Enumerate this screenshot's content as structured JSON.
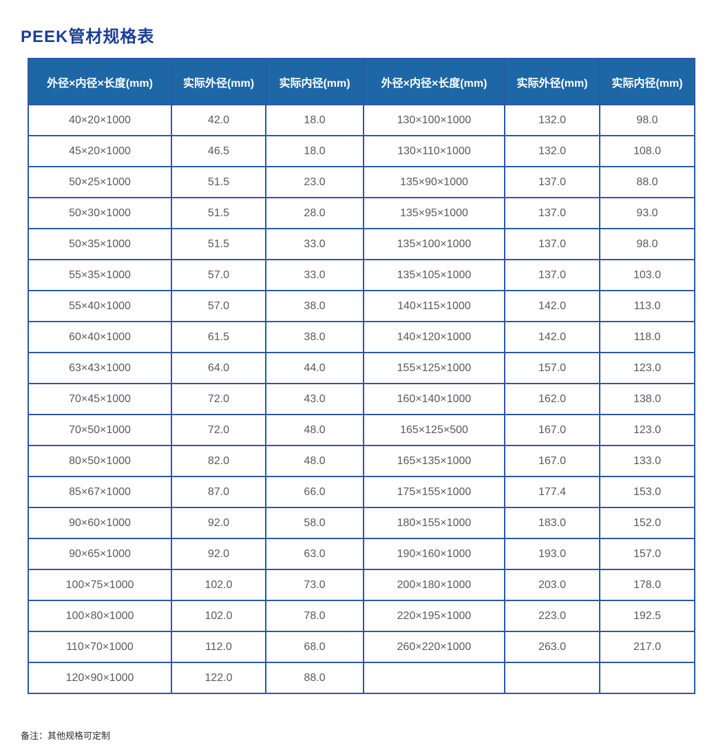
{
  "page": {
    "title": "PEEK管材规格表",
    "note": "备注：其他规格可定制"
  },
  "colors": {
    "title_text": "#1c3e99",
    "header_bg": "#1e67a6",
    "header_text": "#ffffff",
    "border": "#2b57a8",
    "cell_text": "#58595b"
  },
  "table": {
    "headers": [
      "外径×内径×长度(mm)",
      "实际外径(mm)",
      "实际内径(mm)",
      "外径×内径×长度(mm)",
      "实际外径(mm)",
      "实际内径(mm)"
    ],
    "rows": [
      [
        "40×20×1000",
        "42.0",
        "18.0",
        "130×100×1000",
        "132.0",
        "98.0"
      ],
      [
        "45×20×1000",
        "46.5",
        "18.0",
        "130×110×1000",
        "132.0",
        "108.0"
      ],
      [
        "50×25×1000",
        "51.5",
        "23.0",
        "135×90×1000",
        "137.0",
        "88.0"
      ],
      [
        "50×30×1000",
        "51.5",
        "28.0",
        "135×95×1000",
        "137.0",
        "93.0"
      ],
      [
        "50×35×1000",
        "51.5",
        "33.0",
        "135×100×1000",
        "137.0",
        "98.0"
      ],
      [
        "55×35×1000",
        "57.0",
        "33.0",
        "135×105×1000",
        "137.0",
        "103.0"
      ],
      [
        "55×40×1000",
        "57.0",
        "38.0",
        "140×115×1000",
        "142.0",
        "113.0"
      ],
      [
        "60×40×1000",
        "61.5",
        "38.0",
        "140×120×1000",
        "142.0",
        "118.0"
      ],
      [
        "63×43×1000",
        "64.0",
        "44.0",
        "155×125×1000",
        "157.0",
        "123.0"
      ],
      [
        "70×45×1000",
        "72.0",
        "43.0",
        "160×140×1000",
        "162.0",
        "138.0"
      ],
      [
        "70×50×1000",
        "72.0",
        "48.0",
        "165×125×500",
        "167.0",
        "123.0"
      ],
      [
        "80×50×1000",
        "82.0",
        "48.0",
        "165×135×1000",
        "167.0",
        "133.0"
      ],
      [
        "85×67×1000",
        "87.0",
        "66.0",
        "175×155×1000",
        "177.4",
        "153.0"
      ],
      [
        "90×60×1000",
        "92.0",
        "58.0",
        "180×155×1000",
        "183.0",
        "152.0"
      ],
      [
        "90×65×1000",
        "92.0",
        "63.0",
        "190×160×1000",
        "193.0",
        "157.0"
      ],
      [
        "100×75×1000",
        "102.0",
        "73.0",
        "200×180×1000",
        "203.0",
        "178.0"
      ],
      [
        "100×80×1000",
        "102.0",
        "78.0",
        "220×195×1000",
        "223.0",
        "192.5"
      ],
      [
        "110×70×1000",
        "112.0",
        "68.0",
        "260×220×1000",
        "263.0",
        "217.0"
      ],
      [
        "120×90×1000",
        "122.0",
        "88.0",
        "",
        "",
        ""
      ]
    ]
  }
}
